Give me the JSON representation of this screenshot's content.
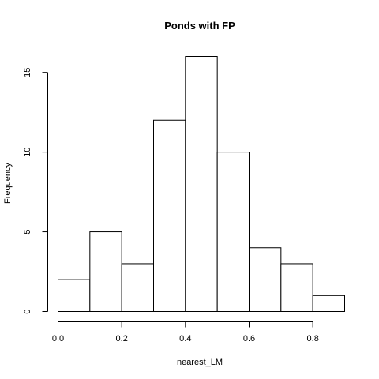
{
  "chart_data": {
    "type": "bar",
    "title": "Ponds with FP",
    "xlabel": "nearest_LM",
    "ylabel": "Frequency",
    "bins": [
      {
        "x0": 0.0,
        "x1": 0.1,
        "count": 2
      },
      {
        "x0": 0.1,
        "x1": 0.2,
        "count": 5
      },
      {
        "x0": 0.2,
        "x1": 0.3,
        "count": 3
      },
      {
        "x0": 0.3,
        "x1": 0.4,
        "count": 12
      },
      {
        "x0": 0.4,
        "x1": 0.5,
        "count": 16
      },
      {
        "x0": 0.5,
        "x1": 0.6,
        "count": 10
      },
      {
        "x0": 0.6,
        "x1": 0.7,
        "count": 4
      },
      {
        "x0": 0.7,
        "x1": 0.8,
        "count": 3
      },
      {
        "x0": 0.8,
        "x1": 0.9,
        "count": 1
      }
    ],
    "xlim": [
      0.0,
      0.9
    ],
    "ylim": [
      0,
      16
    ],
    "x_ticks": [
      0.0,
      0.2,
      0.4,
      0.6,
      0.8
    ],
    "x_tick_labels": [
      "0.0",
      "0.2",
      "0.4",
      "0.6",
      "0.8"
    ],
    "y_ticks": [
      0,
      5,
      10,
      15
    ],
    "y_tick_labels": [
      "0",
      "5",
      "10",
      "15"
    ],
    "grid": false,
    "legend": "none",
    "bar_fill": "#ffffff",
    "bar_stroke": "#000000"
  }
}
